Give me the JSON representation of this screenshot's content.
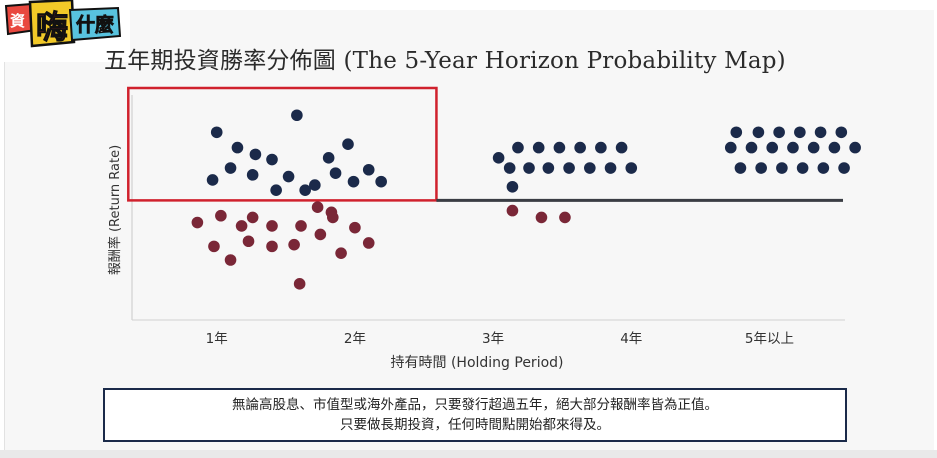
{
  "logo": {
    "text_left": "資",
    "text_main": "嗨",
    "text_right": "什麼"
  },
  "title": "五年期投資勝率分佈圖 (The 5-Year Horizon Probability Map)",
  "note": {
    "line1": "無論高股息、市值型或海外產品，只要發行超過五年，絕大部分報酬率皆為正值。",
    "line2": "只要做長期投資，任何時間點開始都來得及。"
  },
  "colors": {
    "positive": "#1b2a4a",
    "negative": "#7a2737",
    "baseline": "#3a3d44",
    "highlight": "#d0212d"
  },
  "chart_data": {
    "type": "scatter",
    "xlabel": "持有時間 (Holding Period)",
    "ylabel": "報酬率 (Return Rate)",
    "x_ticks": [
      {
        "label": "1年",
        "value": 1
      },
      {
        "label": "2年",
        "value": 2
      },
      {
        "label": "3年",
        "value": 3
      },
      {
        "label": "4年",
        "value": 4
      },
      {
        "label": "5年以上",
        "value": 5
      }
    ],
    "xlim": [
      0.3,
      5.8
    ],
    "ylim": [
      -7.2,
      6.6
    ],
    "baseline_y": 0,
    "highlight_region": {
      "x": [
        0.36,
        2.59
      ],
      "y": [
        0,
        6.6
      ]
    },
    "series": [
      {
        "key": "positive",
        "points": [
          [
            1.0,
            4.0
          ],
          [
            1.1,
            1.9
          ],
          [
            0.97,
            1.2
          ],
          [
            1.15,
            3.1
          ],
          [
            1.28,
            2.7
          ],
          [
            1.4,
            2.4
          ],
          [
            1.26,
            1.5
          ],
          [
            1.43,
            0.6
          ],
          [
            1.52,
            1.4
          ],
          [
            1.58,
            5.0
          ],
          [
            1.71,
            0.9
          ],
          [
            1.64,
            0.6
          ],
          [
            1.81,
            2.5
          ],
          [
            1.86,
            1.6
          ],
          [
            1.95,
            3.3
          ],
          [
            1.99,
            1.1
          ],
          [
            2.1,
            1.8
          ],
          [
            2.19,
            1.1
          ]
        ]
      },
      {
        "key": "negative",
        "points": [
          [
            0.86,
            -1.3
          ],
          [
            1.03,
            -0.9
          ],
          [
            1.18,
            -1.5
          ],
          [
            1.26,
            -1.0
          ],
          [
            1.4,
            -1.5
          ],
          [
            1.56,
            -2.6
          ],
          [
            1.73,
            -0.4
          ],
          [
            1.83,
            -0.7
          ],
          [
            0.98,
            -2.7
          ],
          [
            1.1,
            -3.5
          ],
          [
            1.23,
            -2.4
          ],
          [
            1.4,
            -2.7
          ],
          [
            1.6,
            -4.9
          ],
          [
            1.61,
            -1.5
          ],
          [
            1.75,
            -2.0
          ],
          [
            1.84,
            -1.0
          ],
          [
            1.9,
            -3.1
          ],
          [
            2.0,
            -1.6
          ],
          [
            2.1,
            -2.5
          ]
        ]
      },
      {
        "key": "positive",
        "points": [
          [
            3.04,
            2.5
          ],
          [
            3.18,
            3.1
          ],
          [
            3.33,
            3.1
          ],
          [
            3.48,
            3.1
          ],
          [
            3.63,
            3.1
          ],
          [
            3.78,
            3.1
          ],
          [
            3.93,
            3.1
          ],
          [
            3.12,
            1.9
          ],
          [
            3.26,
            1.9
          ],
          [
            3.4,
            1.9
          ],
          [
            3.55,
            1.9
          ],
          [
            3.7,
            1.9
          ],
          [
            3.85,
            1.9
          ],
          [
            4.0,
            1.9
          ],
          [
            3.14,
            0.8
          ]
        ]
      },
      {
        "key": "negative",
        "points": [
          [
            3.14,
            -0.6
          ],
          [
            3.35,
            -1.0
          ],
          [
            3.52,
            -1.0
          ]
        ]
      },
      {
        "key": "positive",
        "points": [
          [
            4.76,
            4.0
          ],
          [
            4.92,
            4.0
          ],
          [
            5.07,
            4.0
          ],
          [
            5.22,
            4.0
          ],
          [
            5.37,
            4.0
          ],
          [
            5.52,
            4.0
          ],
          [
            4.72,
            3.1
          ],
          [
            4.87,
            3.1
          ],
          [
            5.02,
            3.1
          ],
          [
            5.17,
            3.1
          ],
          [
            5.32,
            3.1
          ],
          [
            5.47,
            3.1
          ],
          [
            5.62,
            3.1
          ],
          [
            4.79,
            1.9
          ],
          [
            4.94,
            1.9
          ],
          [
            5.09,
            1.9
          ],
          [
            5.24,
            1.9
          ],
          [
            5.39,
            1.9
          ],
          [
            5.54,
            1.9
          ]
        ]
      }
    ]
  }
}
